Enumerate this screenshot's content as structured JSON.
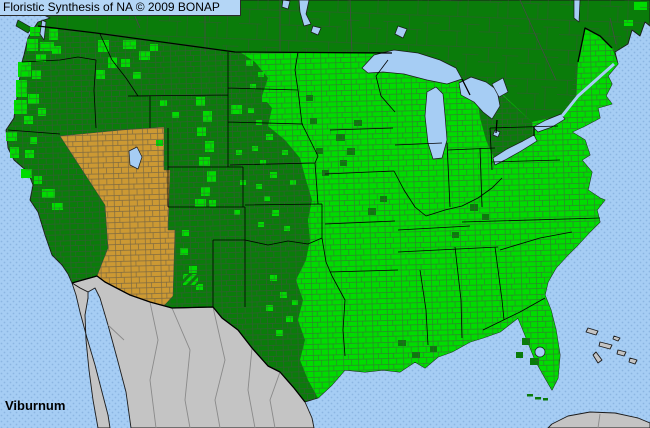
{
  "header": {
    "title": "Floristic Synthesis of NA © 2009 BONAP"
  },
  "map": {
    "taxon_label": "Viburnum"
  },
  "colors": {
    "county-present": "#00DC00",
    "state-present": "#0A7C0A",
    "state-absent": "#CC9933",
    "unmapped-land": "#C4C4C4",
    "water": "#A6CDF4",
    "water-dot": "#8CB5E2",
    "titlebar-bg": "#B4D6F6",
    "coast-line": "#1A1A1A",
    "label-text": "#000000"
  }
}
